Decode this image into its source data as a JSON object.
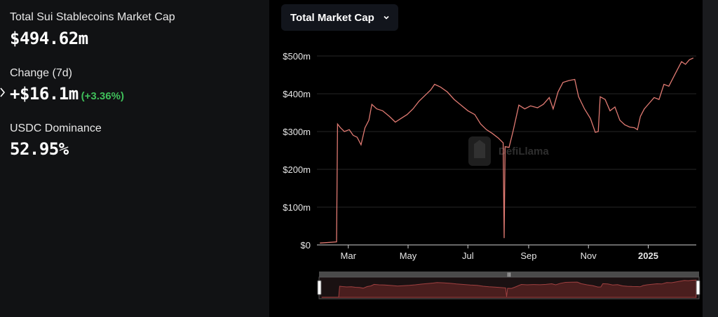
{
  "stats": {
    "market_cap_label": "Total Sui Stablecoins Market Cap",
    "market_cap_value": "$494.62m",
    "change_label": "Change (7d)",
    "change_value": "+$16.1m",
    "change_pct": "(+3.36%)",
    "dominance_label": "USDC Dominance",
    "dominance_value": "52.95%"
  },
  "dropdown": {
    "label": "Total Market Cap",
    "icon": "chevron-down-icon"
  },
  "watermark": "DefiLlama",
  "colors": {
    "line": "#e07a72",
    "positive": "#3fbf5a",
    "background": "#000000",
    "panel": "#111214"
  },
  "chart_data": {
    "type": "line",
    "series": [
      {
        "values": [
          [
            "2024-02-01",
            5
          ],
          [
            "2024-02-18",
            8
          ],
          [
            "2024-02-19",
            320
          ],
          [
            "2024-02-22",
            310
          ],
          [
            "2024-02-26",
            300
          ],
          [
            "2024-03-02",
            305
          ],
          [
            "2024-03-06",
            290
          ],
          [
            "2024-03-10",
            285
          ],
          [
            "2024-03-14",
            265
          ],
          [
            "2024-03-18",
            310
          ],
          [
            "2024-03-22",
            330
          ],
          [
            "2024-03-25",
            372
          ],
          [
            "2024-03-30",
            360
          ],
          [
            "2024-04-05",
            355
          ],
          [
            "2024-04-12",
            340
          ],
          [
            "2024-04-18",
            325
          ],
          [
            "2024-04-24",
            335
          ],
          [
            "2024-04-30",
            345
          ],
          [
            "2024-05-06",
            360
          ],
          [
            "2024-05-12",
            380
          ],
          [
            "2024-05-18",
            395
          ],
          [
            "2024-05-24",
            410
          ],
          [
            "2024-05-28",
            425
          ],
          [
            "2024-06-03",
            418
          ],
          [
            "2024-06-10",
            405
          ],
          [
            "2024-06-17",
            385
          ],
          [
            "2024-06-24",
            370
          ],
          [
            "2024-07-01",
            355
          ],
          [
            "2024-07-08",
            345
          ],
          [
            "2024-07-14",
            320
          ],
          [
            "2024-07-20",
            305
          ],
          [
            "2024-07-26",
            295
          ],
          [
            "2024-08-01",
            283
          ],
          [
            "2024-08-06",
            270
          ],
          [
            "2024-08-07",
            18
          ],
          [
            "2024-08-08",
            260
          ],
          [
            "2024-08-12",
            258
          ],
          [
            "2024-08-16",
            300
          ],
          [
            "2024-08-22",
            370
          ],
          [
            "2024-08-28",
            360
          ],
          [
            "2024-09-03",
            368
          ],
          [
            "2024-09-10",
            363
          ],
          [
            "2024-09-16",
            372
          ],
          [
            "2024-09-22",
            390
          ],
          [
            "2024-09-26",
            360
          ],
          [
            "2024-10-01",
            405
          ],
          [
            "2024-10-06",
            430
          ],
          [
            "2024-10-12",
            435
          ],
          [
            "2024-10-18",
            438
          ],
          [
            "2024-10-22",
            392
          ],
          [
            "2024-10-28",
            360
          ],
          [
            "2024-11-03",
            335
          ],
          [
            "2024-11-08",
            298
          ],
          [
            "2024-11-11",
            300
          ],
          [
            "2024-11-13",
            392
          ],
          [
            "2024-11-18",
            385
          ],
          [
            "2024-11-23",
            355
          ],
          [
            "2024-11-28",
            365
          ],
          [
            "2024-12-03",
            330
          ],
          [
            "2024-12-08",
            318
          ],
          [
            "2024-12-13",
            312
          ],
          [
            "2024-12-18",
            310
          ],
          [
            "2024-12-21",
            305
          ],
          [
            "2024-12-24",
            340
          ],
          [
            "2024-12-28",
            360
          ],
          [
            "2025-01-02",
            375
          ],
          [
            "2025-01-07",
            390
          ],
          [
            "2025-01-12",
            385
          ],
          [
            "2025-01-17",
            425
          ],
          [
            "2025-01-22",
            420
          ],
          [
            "2025-01-26",
            440
          ],
          [
            "2025-01-30",
            460
          ],
          [
            "2025-02-04",
            485
          ],
          [
            "2025-02-08",
            478
          ],
          [
            "2025-02-12",
            490
          ],
          [
            "2025-02-16",
            494.62
          ]
        ]
      }
    ],
    "xlim": [
      "2024-01-29",
      "2025-02-19"
    ],
    "ylim": [
      0,
      500
    ],
    "y_ticks": [
      0,
      100,
      200,
      300,
      400,
      500
    ],
    "y_tick_labels": [
      "$0",
      "$100m",
      "$200m",
      "$300m",
      "$400m",
      "$500m"
    ],
    "x_ticks": [
      "2024-03-01",
      "2024-05-01",
      "2024-07-01",
      "2024-09-01",
      "2024-11-01",
      "2025-01-01"
    ],
    "x_tick_labels": [
      "Mar",
      "May",
      "Jul",
      "Sep",
      "Nov",
      "2025"
    ],
    "grid": true,
    "brush": true
  }
}
